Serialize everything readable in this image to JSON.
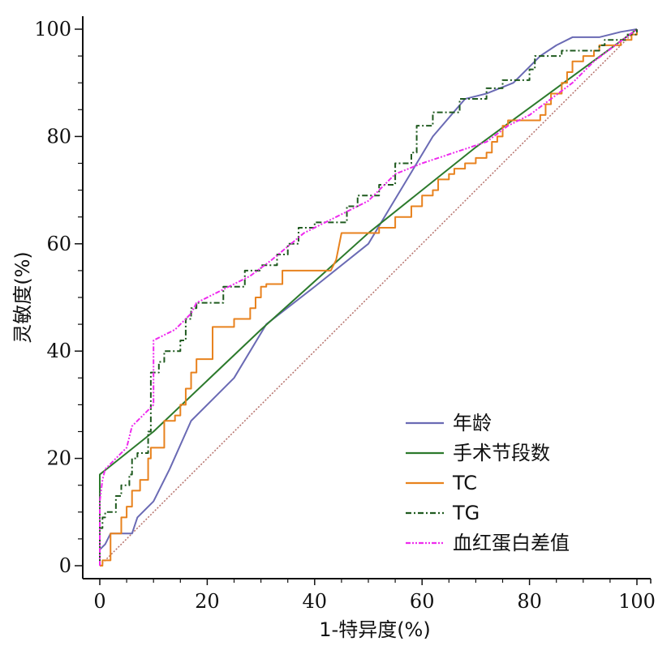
{
  "chart_data": {
    "type": "line",
    "title": "",
    "xlabel": "1-特异度(%)",
    "ylabel": "灵敏度(%)",
    "xlim": [
      0,
      100
    ],
    "ylim": [
      0,
      100
    ],
    "x_ticks": [
      "0",
      "20",
      "40",
      "60",
      "80",
      "100"
    ],
    "y_ticks": [
      "0",
      "20",
      "40",
      "60",
      "80",
      "100"
    ],
    "grid": false,
    "legend_position": "bottom-right",
    "reference_line": {
      "color": "#b5706a",
      "style": "dotted"
    },
    "series": [
      {
        "name": "年龄",
        "color": "#6a6ab4",
        "style": "solid",
        "points": [
          [
            0,
            0
          ],
          [
            0,
            3
          ],
          [
            1,
            4
          ],
          [
            1.5,
            5
          ],
          [
            2,
            6
          ],
          [
            6,
            6
          ],
          [
            7,
            9
          ],
          [
            10,
            12
          ],
          [
            13,
            18
          ],
          [
            17,
            27
          ],
          [
            21,
            31
          ],
          [
            25,
            35
          ],
          [
            31,
            45
          ],
          [
            40,
            52
          ],
          [
            50,
            60
          ],
          [
            56,
            70
          ],
          [
            62,
            80
          ],
          [
            68,
            87
          ],
          [
            72,
            88
          ],
          [
            77,
            90
          ],
          [
            80,
            93
          ],
          [
            82,
            95
          ],
          [
            85,
            97
          ],
          [
            88,
            98.5
          ],
          [
            93,
            98.5
          ],
          [
            97,
            99.5
          ],
          [
            100,
            100
          ]
        ]
      },
      {
        "name": "手术节段数",
        "color": "#2c7a2c",
        "style": "solid",
        "points": [
          [
            0,
            0
          ],
          [
            0,
            17
          ],
          [
            10,
            25
          ],
          [
            30,
            44
          ],
          [
            50,
            62
          ],
          [
            70,
            78
          ],
          [
            100,
            100
          ]
        ]
      },
      {
        "name": "TC",
        "color": "#e8821e",
        "style": "solid",
        "points": [
          [
            0,
            0
          ],
          [
            0.5,
            0
          ],
          [
            0.5,
            1
          ],
          [
            2,
            1
          ],
          [
            2,
            6
          ],
          [
            4,
            6
          ],
          [
            4,
            9
          ],
          [
            5,
            9
          ],
          [
            5,
            11
          ],
          [
            6,
            11
          ],
          [
            6,
            14
          ],
          [
            7.5,
            14
          ],
          [
            7.5,
            16
          ],
          [
            9,
            16
          ],
          [
            9,
            20
          ],
          [
            9.5,
            20
          ],
          [
            9.5,
            22
          ],
          [
            12,
            22
          ],
          [
            12,
            27
          ],
          [
            14,
            27
          ],
          [
            14,
            28
          ],
          [
            15,
            28
          ],
          [
            15,
            30
          ],
          [
            16,
            30
          ],
          [
            16,
            33
          ],
          [
            17,
            33
          ],
          [
            17,
            36
          ],
          [
            18,
            36
          ],
          [
            18,
            38.5
          ],
          [
            21,
            38.5
          ],
          [
            21,
            44.5
          ],
          [
            25,
            44.5
          ],
          [
            25,
            46
          ],
          [
            28,
            46
          ],
          [
            28,
            48
          ],
          [
            29,
            48
          ],
          [
            29,
            50
          ],
          [
            30,
            50
          ],
          [
            30,
            52
          ],
          [
            31,
            52
          ],
          [
            31,
            52.5
          ],
          [
            34,
            52.5
          ],
          [
            34,
            55
          ],
          [
            43,
            55
          ],
          [
            44,
            57
          ],
          [
            45,
            62
          ],
          [
            52,
            62
          ],
          [
            52,
            63
          ],
          [
            55,
            63
          ],
          [
            55,
            65
          ],
          [
            58,
            65
          ],
          [
            58,
            67
          ],
          [
            60,
            67
          ],
          [
            60,
            69
          ],
          [
            62,
            69
          ],
          [
            62,
            70
          ],
          [
            63,
            70
          ],
          [
            63,
            72
          ],
          [
            65,
            72
          ],
          [
            65,
            73
          ],
          [
            66,
            73
          ],
          [
            66,
            74
          ],
          [
            68,
            74
          ],
          [
            68,
            75
          ],
          [
            70,
            75
          ],
          [
            70,
            76
          ],
          [
            72,
            76
          ],
          [
            72,
            77
          ],
          [
            73,
            77
          ],
          [
            73,
            79
          ],
          [
            74,
            79
          ],
          [
            74,
            80
          ],
          [
            75,
            80
          ],
          [
            75,
            82
          ],
          [
            76,
            82
          ],
          [
            76,
            83
          ],
          [
            82,
            83
          ],
          [
            82,
            84
          ],
          [
            83,
            84
          ],
          [
            83,
            86
          ],
          [
            84,
            86
          ],
          [
            84,
            88
          ],
          [
            86,
            88
          ],
          [
            86,
            90
          ],
          [
            87,
            90
          ],
          [
            87,
            92
          ],
          [
            88,
            92
          ],
          [
            88,
            94
          ],
          [
            90,
            94
          ],
          [
            90,
            95
          ],
          [
            92,
            95
          ],
          [
            92,
            96
          ],
          [
            93,
            96
          ],
          [
            93,
            97
          ],
          [
            97,
            97
          ],
          [
            97,
            98
          ],
          [
            99,
            98
          ],
          [
            99,
            99
          ],
          [
            100,
            99
          ],
          [
            100,
            100
          ]
        ]
      },
      {
        "name": "TG",
        "color": "#1f5a1f",
        "style": "dashdot",
        "points": [
          [
            0,
            0
          ],
          [
            0,
            7
          ],
          [
            0.5,
            7
          ],
          [
            0.5,
            9
          ],
          [
            1,
            9
          ],
          [
            1,
            10
          ],
          [
            3,
            10
          ],
          [
            3,
            13
          ],
          [
            4,
            13
          ],
          [
            4,
            15
          ],
          [
            5.5,
            15
          ],
          [
            5.5,
            17
          ],
          [
            6,
            17
          ],
          [
            6,
            20
          ],
          [
            7,
            20
          ],
          [
            7,
            21
          ],
          [
            9,
            21
          ],
          [
            9,
            25
          ],
          [
            9.5,
            25
          ],
          [
            9.5,
            36
          ],
          [
            11,
            36
          ],
          [
            11,
            38
          ],
          [
            12,
            38
          ],
          [
            12,
            40
          ],
          [
            15,
            40
          ],
          [
            15,
            42
          ],
          [
            16,
            42
          ],
          [
            16,
            46
          ],
          [
            17,
            46
          ],
          [
            17,
            48
          ],
          [
            18,
            48
          ],
          [
            18,
            49
          ],
          [
            23,
            49
          ],
          [
            23,
            52
          ],
          [
            27,
            52
          ],
          [
            27,
            55
          ],
          [
            30,
            55
          ],
          [
            30,
            56
          ],
          [
            33,
            56
          ],
          [
            33,
            58
          ],
          [
            35,
            58
          ],
          [
            35,
            60
          ],
          [
            37,
            60
          ],
          [
            37,
            63
          ],
          [
            40,
            63
          ],
          [
            40,
            64
          ],
          [
            46,
            64
          ],
          [
            46,
            67
          ],
          [
            48,
            67
          ],
          [
            48,
            69
          ],
          [
            52,
            69
          ],
          [
            52,
            71
          ],
          [
            55,
            71
          ],
          [
            55,
            75
          ],
          [
            58,
            75
          ],
          [
            58,
            77
          ],
          [
            59,
            77
          ],
          [
            59,
            82
          ],
          [
            62,
            82
          ],
          [
            62,
            84.5
          ],
          [
            67,
            84.5
          ],
          [
            67,
            87
          ],
          [
            72,
            87
          ],
          [
            72,
            89
          ],
          [
            75,
            89
          ],
          [
            75,
            90.5
          ],
          [
            80,
            90.5
          ],
          [
            80,
            92.5
          ],
          [
            81,
            92.5
          ],
          [
            81,
            95
          ],
          [
            86,
            95
          ],
          [
            86,
            96
          ],
          [
            93,
            96
          ],
          [
            93,
            97
          ],
          [
            94,
            97
          ],
          [
            94,
            98
          ],
          [
            98,
            98
          ],
          [
            98,
            99
          ],
          [
            100,
            99
          ],
          [
            100,
            100
          ]
        ]
      },
      {
        "name": "血红蛋白差值",
        "color": "#ee2bee",
        "style": "dashdotdot",
        "points": [
          [
            0,
            0
          ],
          [
            0,
            12
          ],
          [
            0.5,
            16
          ],
          [
            1,
            18
          ],
          [
            3,
            20
          ],
          [
            5,
            22
          ],
          [
            6,
            26
          ],
          [
            8,
            28
          ],
          [
            10,
            30
          ],
          [
            10,
            42
          ],
          [
            12,
            43
          ],
          [
            14,
            44
          ],
          [
            17,
            47
          ],
          [
            18,
            49
          ],
          [
            22,
            51
          ],
          [
            28,
            54
          ],
          [
            32,
            57
          ],
          [
            38,
            62
          ],
          [
            42,
            64
          ],
          [
            46,
            66
          ],
          [
            50,
            68
          ],
          [
            52,
            70
          ],
          [
            55,
            73
          ],
          [
            60,
            75
          ],
          [
            66,
            77
          ],
          [
            72,
            79
          ],
          [
            76,
            82
          ],
          [
            80,
            84
          ],
          [
            84,
            87
          ],
          [
            88,
            90
          ],
          [
            92,
            94
          ],
          [
            96,
            97
          ],
          [
            100,
            100
          ]
        ]
      }
    ]
  }
}
